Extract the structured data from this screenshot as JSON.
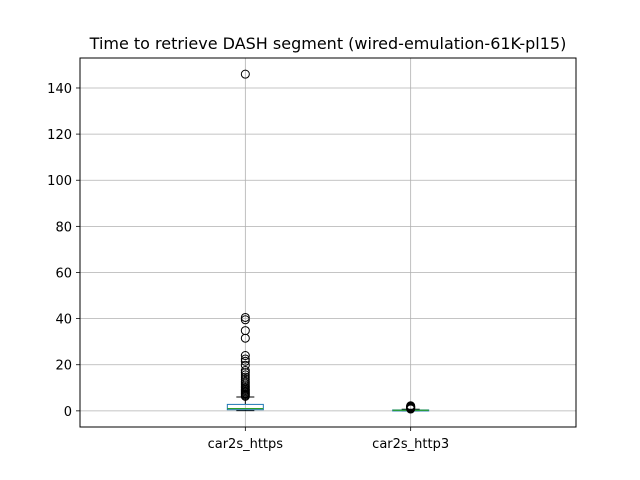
{
  "chart_data": {
    "type": "box",
    "title": "Time to retrieve DASH segment (wired-emulation-61K-pl15)",
    "xlabel": "",
    "ylabel": "",
    "ylim": [
      -7,
      153
    ],
    "yticks": [
      "0",
      "20",
      "40",
      "60",
      "80",
      "100",
      "120",
      "140"
    ],
    "grid": true,
    "colors": {
      "box": "#1f77b4",
      "median": "#2ca02c",
      "whisker": "#000000",
      "flier": "#000000",
      "grid": "#b0b0b0"
    },
    "categories": [
      "car2s_https",
      "car2s_http3"
    ],
    "boxes": [
      {
        "name": "car2s_https",
        "whisker_low": 0.1,
        "q1": 0.5,
        "median": 1.0,
        "q3": 2.8,
        "whisker_high": 6.0,
        "outliers": [
          6.3,
          6.8,
          7.3,
          7.8,
          8.3,
          8.8,
          9.3,
          9.9,
          10.5,
          11.2,
          12.0,
          12.8,
          13.7,
          14.6,
          15.6,
          16.6,
          17.5,
          19.8,
          21.5,
          22.5,
          24.0,
          31.5,
          34.8,
          39.5,
          40.5,
          146.0
        ]
      },
      {
        "name": "car2s_http3",
        "whisker_low": 0.0,
        "q1": 0.1,
        "median": 0.25,
        "q3": 0.4,
        "whisker_high": 0.7,
        "outliers": [
          0.8,
          1.0,
          1.2,
          1.4,
          1.6,
          1.8,
          2.0,
          2.2
        ]
      }
    ]
  }
}
